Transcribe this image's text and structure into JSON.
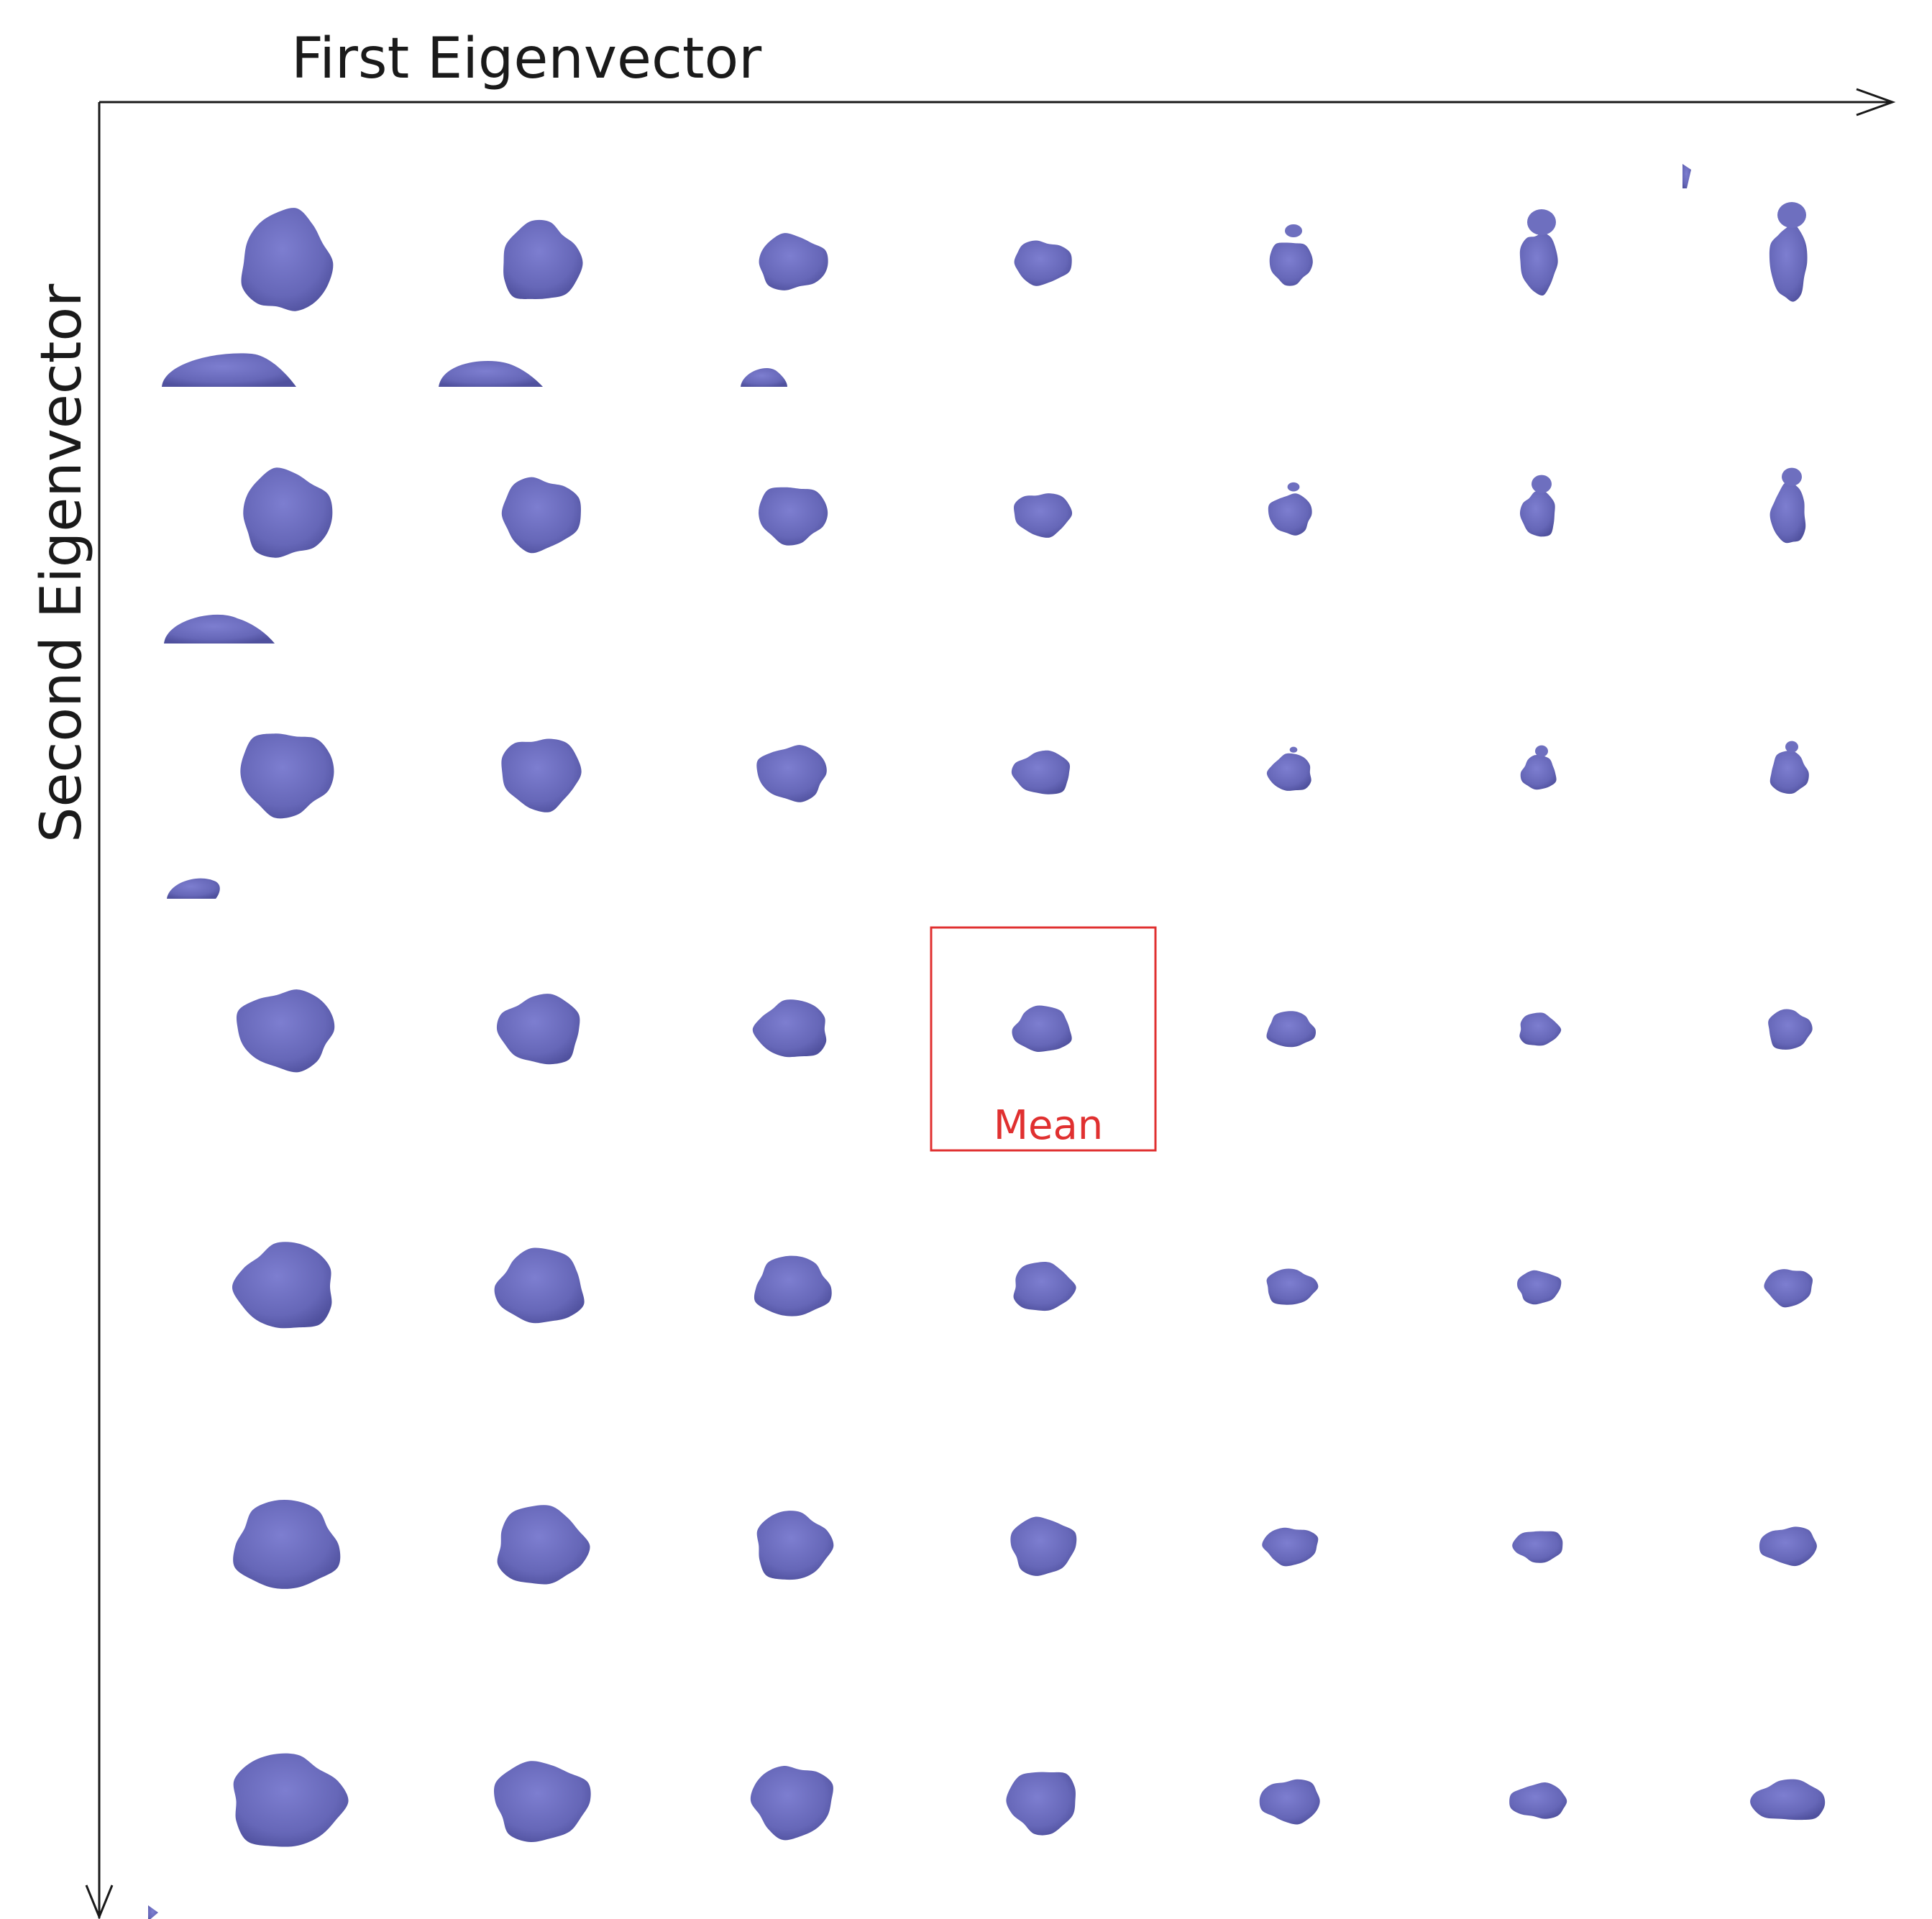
{
  "axes": {
    "x_label": "First Eigenvector",
    "y_label": "Second Eigenvector"
  },
  "grid": {
    "columns": 7,
    "rows": 7,
    "mean_cell": {
      "row": 3,
      "col": 3
    }
  },
  "mean": {
    "label": "Mean"
  },
  "colors": {
    "shape_fill": "#6e6fbf",
    "shape_shadow": "#4d4e99",
    "highlight": "#e03030",
    "axis": "#1a1a1a"
  }
}
